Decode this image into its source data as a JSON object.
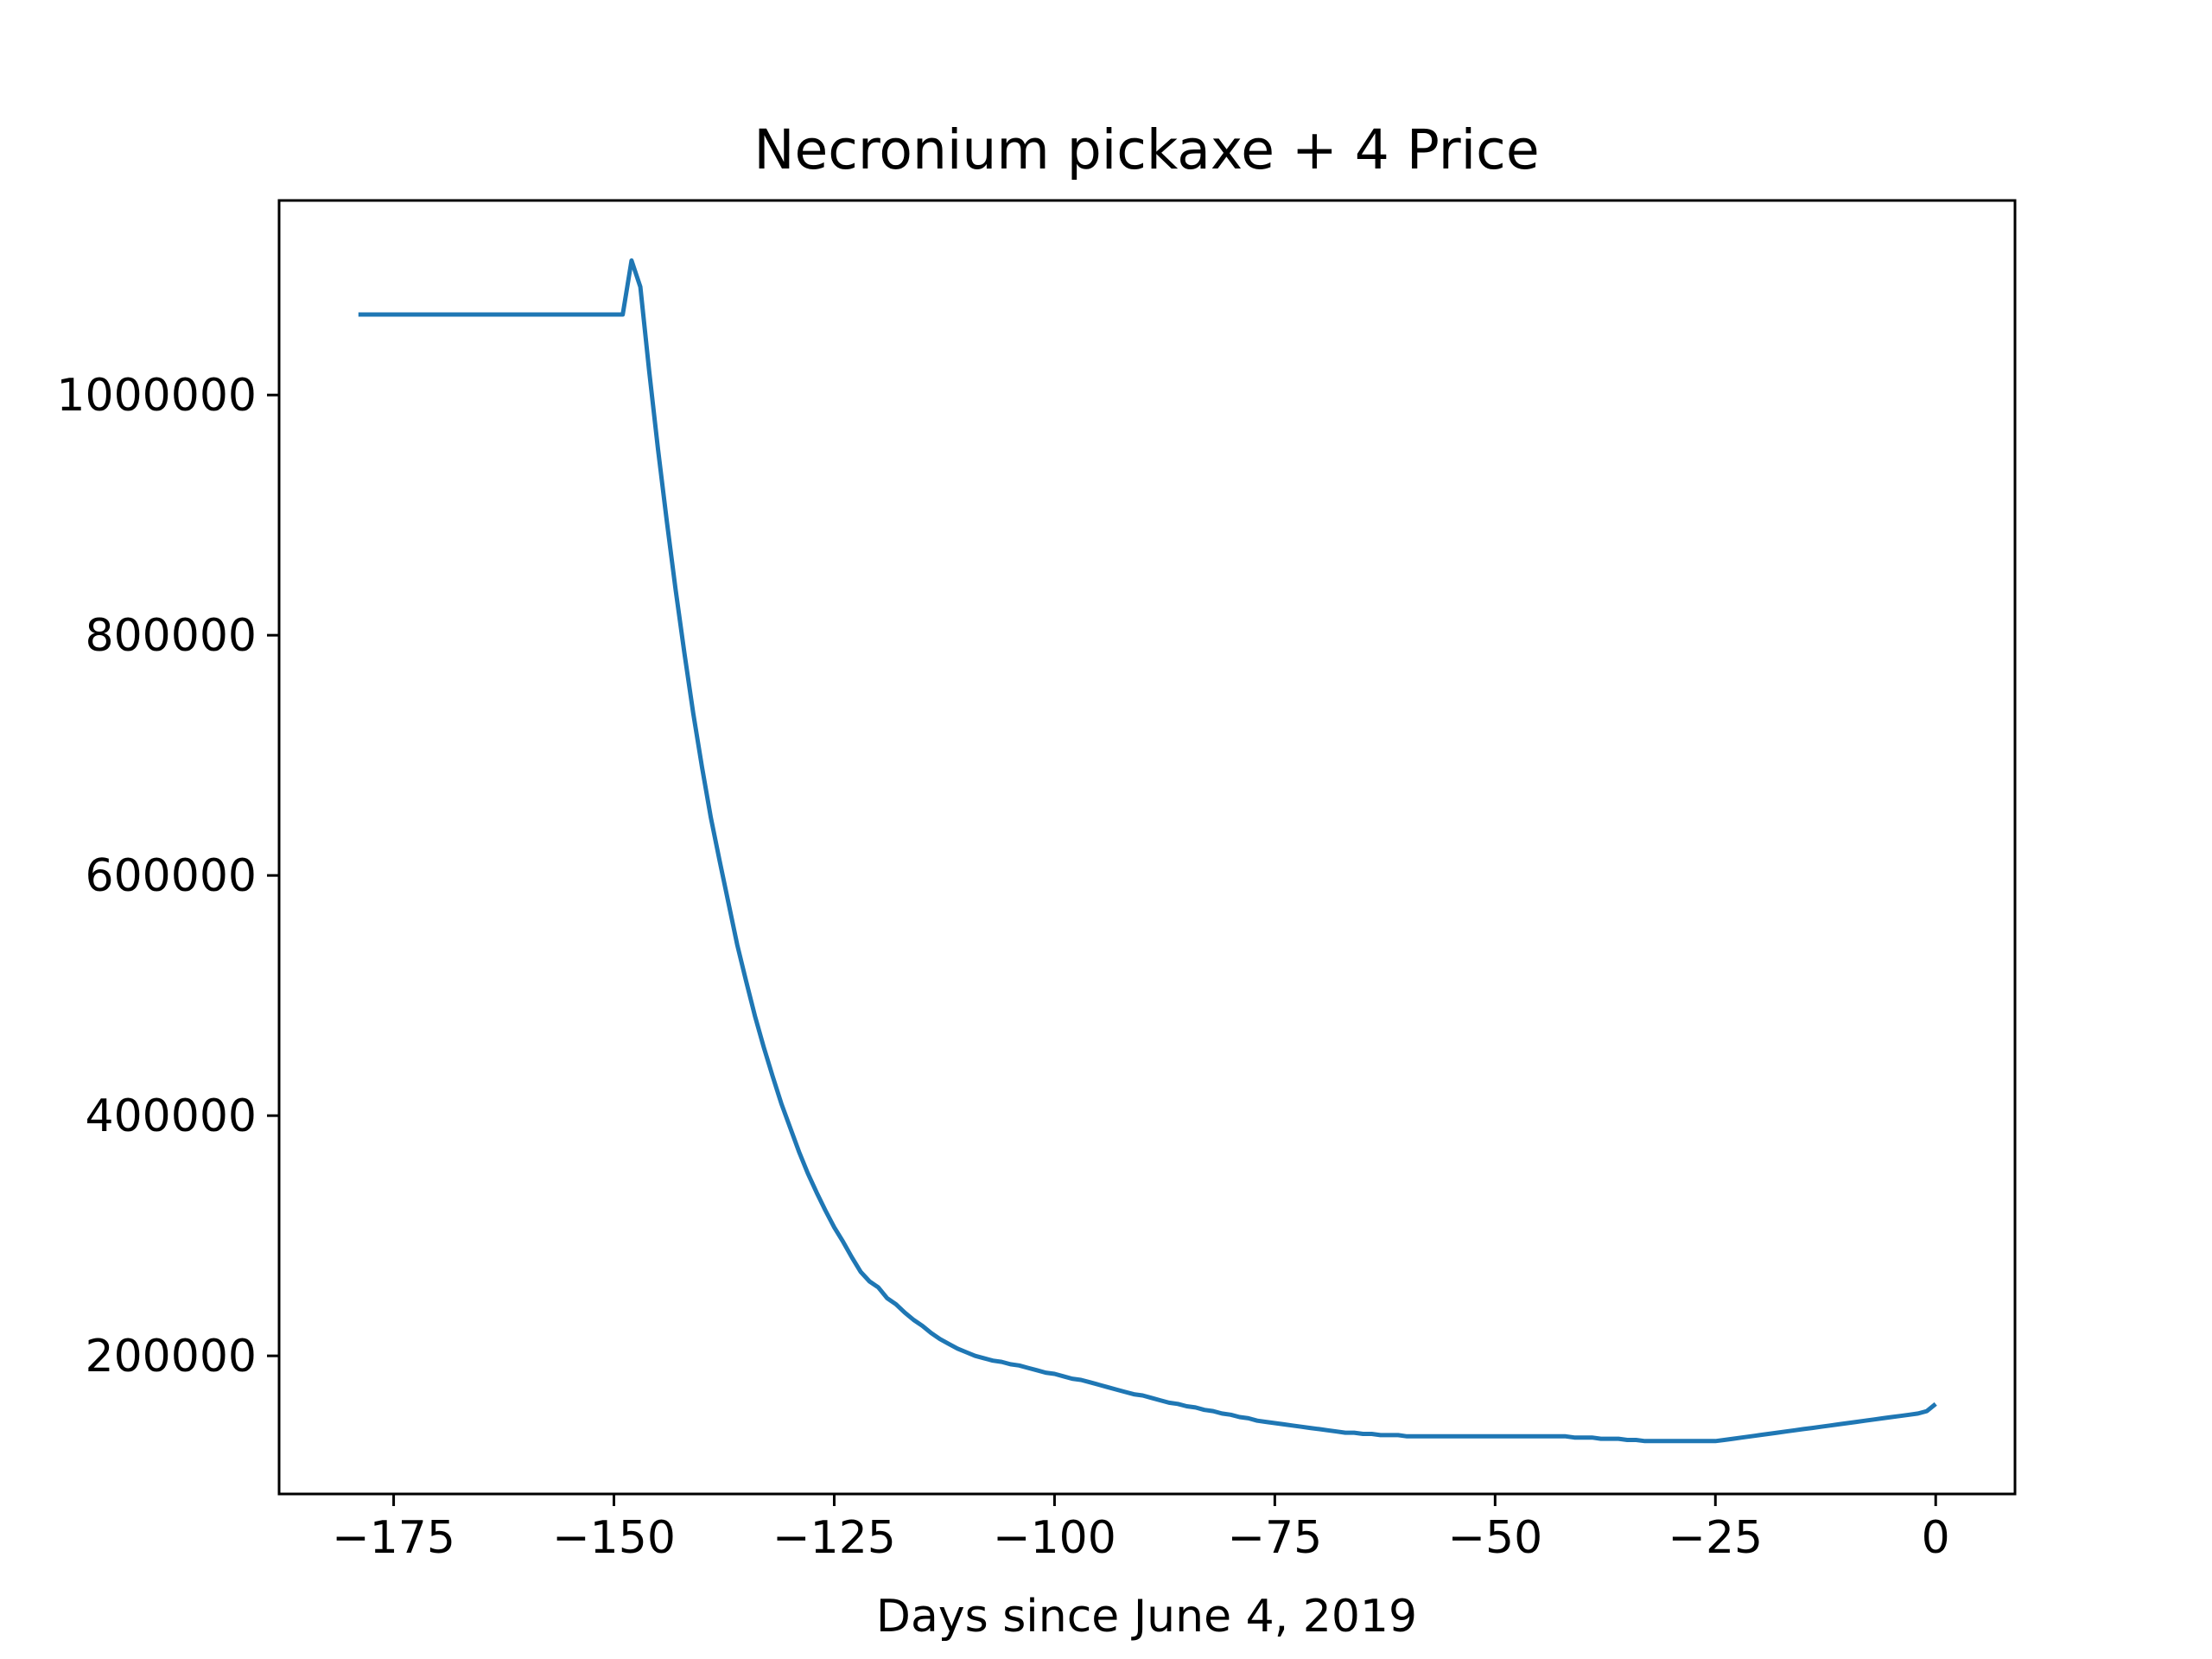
{
  "chart_data": {
    "type": "line",
    "title": "Necronium pickaxe + 4 Price",
    "xlabel": "Days since June 4, 2019",
    "ylabel": "",
    "xlim": [
      -188,
      9
    ],
    "ylim": [
      85000,
      1162000
    ],
    "xticks": [
      -175,
      -150,
      -125,
      -100,
      -75,
      -50,
      -25,
      0
    ],
    "xtick_labels": [
      "−175",
      "−150",
      "−125",
      "−100",
      "−75",
      "−50",
      "−25",
      "0"
    ],
    "yticks": [
      200000,
      400000,
      600000,
      800000,
      1000000
    ],
    "ytick_labels": [
      "200000",
      "400000",
      "600000",
      "800000",
      "1000000"
    ],
    "grid": false,
    "line_color": "#1f77b4",
    "series": [
      {
        "x": [
          -179,
          -170,
          -160,
          -150,
          -149,
          -148,
          -147,
          -146,
          -145,
          -144,
          -143,
          -142,
          -141,
          -140,
          -139,
          -138,
          -137,
          -136,
          -135,
          -134,
          -133,
          -132,
          -131,
          -130,
          -129,
          -128,
          -127,
          -126,
          -125,
          -124,
          -123,
          -122,
          -121,
          -120,
          -119,
          -118,
          -117,
          -116,
          -115,
          -114,
          -113,
          -112,
          -111,
          -110,
          -109,
          -108,
          -107,
          -106,
          -105,
          -104,
          -103,
          -102,
          -101,
          -100,
          -99,
          -98,
          -97,
          -96,
          -95,
          -94,
          -93,
          -92,
          -91,
          -90,
          -89,
          -88,
          -87,
          -86,
          -85,
          -84,
          -83,
          -82,
          -81,
          -80,
          -79,
          -78,
          -77,
          -76,
          -75,
          -74,
          -73,
          -72,
          -71,
          -70,
          -69,
          -68,
          -67,
          -66,
          -65,
          -64,
          -63,
          -62,
          -61,
          -60,
          -59,
          -58,
          -57,
          -56,
          -55,
          -54,
          -53,
          -52,
          -51,
          -50,
          -49,
          -48,
          -47,
          -46,
          -45,
          -44,
          -43,
          -42,
          -41,
          -40,
          -39,
          -38,
          -37,
          -36,
          -35,
          -34,
          -33,
          -32,
          -31,
          -30,
          -29,
          -28,
          -27,
          -26,
          -25,
          -24,
          -23,
          -22,
          -21,
          -20,
          -19,
          -18,
          -17,
          -16,
          -15,
          -14,
          -13,
          -12,
          -11,
          -10,
          -9,
          -8,
          -7,
          -6,
          -5,
          -4,
          -3,
          -2,
          -1,
          0
        ],
        "y": [
          1067000,
          1067000,
          1067000,
          1067000,
          1067000,
          1112000,
          1090000,
          1020000,
          955000,
          895000,
          838000,
          785000,
          735000,
          690000,
          648000,
          612000,
          577000,
          542000,
          512000,
          483000,
          457000,
          433000,
          410000,
          390000,
          370000,
          352000,
          336000,
          321000,
          307000,
          295000,
          282000,
          270000,
          262000,
          257000,
          248000,
          243000,
          236000,
          230000,
          225000,
          219000,
          214000,
          210000,
          206000,
          203000,
          200000,
          198000,
          196000,
          195000,
          193000,
          192000,
          190000,
          188000,
          186000,
          185000,
          183000,
          181000,
          180000,
          178000,
          176000,
          174000,
          172000,
          170000,
          168000,
          167000,
          165000,
          163000,
          161000,
          160000,
          158000,
          157000,
          155000,
          154000,
          152000,
          151000,
          149000,
          148000,
          146000,
          145000,
          144000,
          143000,
          142000,
          141000,
          140000,
          139000,
          138000,
          137000,
          136000,
          136000,
          135000,
          135000,
          134000,
          134000,
          134000,
          133000,
          133000,
          133000,
          133000,
          133000,
          133000,
          133000,
          133000,
          133000,
          133000,
          133000,
          133000,
          133000,
          133000,
          133000,
          133000,
          133000,
          133000,
          133000,
          132000,
          132000,
          132000,
          131000,
          131000,
          131000,
          130000,
          130000,
          129000,
          129000,
          129000,
          129000,
          129000,
          129000,
          129000,
          129000,
          129000,
          130000,
          131000,
          132000,
          133000,
          134000,
          135000,
          136000,
          137000,
          138000,
          139000,
          140000,
          141000,
          142000,
          143000,
          144000,
          145000,
          146000,
          147000,
          148000,
          149000,
          150000,
          151000,
          152000,
          154000,
          160000
        ]
      }
    ]
  }
}
